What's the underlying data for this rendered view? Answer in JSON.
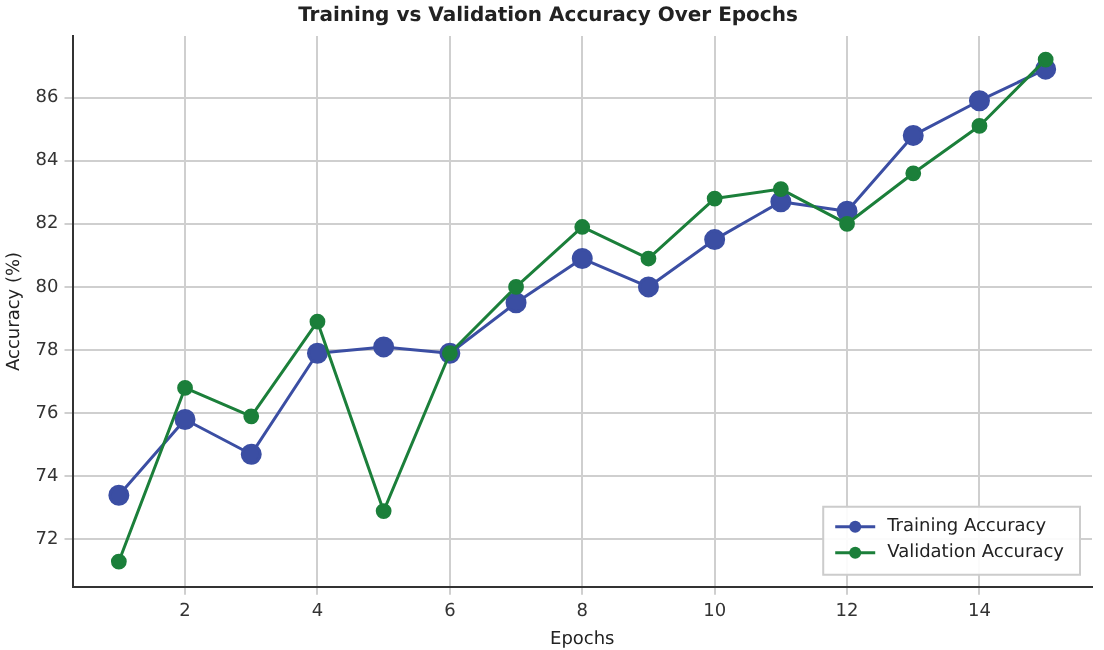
{
  "chart_data": {
    "type": "line",
    "title": "Training vs Validation Accuracy Over Epochs",
    "xlabel": "Epochs",
    "ylabel": "Accuracy (%)",
    "x": [
      1,
      2,
      3,
      4,
      5,
      6,
      7,
      8,
      9,
      10,
      11,
      12,
      13,
      14,
      15
    ],
    "series": [
      {
        "name": "Training Accuracy",
        "color": "#3b4ea3",
        "values": [
          73.4,
          75.8,
          74.7,
          77.9,
          78.1,
          77.9,
          79.5,
          80.9,
          80.0,
          81.5,
          82.7,
          82.4,
          84.8,
          85.9,
          86.9
        ]
      },
      {
        "name": "Validation Accuracy",
        "color": "#1b7f3a",
        "values": [
          71.3,
          76.8,
          75.9,
          78.9,
          72.9,
          77.9,
          80.0,
          81.9,
          80.9,
          82.8,
          83.1,
          82.0,
          83.6,
          85.1,
          87.2
        ]
      }
    ],
    "xlim": [
      0.3,
      15.7
    ],
    "xticks": [
      2,
      4,
      6,
      8,
      10,
      12,
      14
    ],
    "ylim": [
      70.5,
      87.95
    ],
    "yticks": [
      72,
      74,
      76,
      78,
      80,
      82,
      84,
      86
    ],
    "grid": true,
    "legend": "bottom right",
    "marker": "circle",
    "line_style": "solid"
  }
}
